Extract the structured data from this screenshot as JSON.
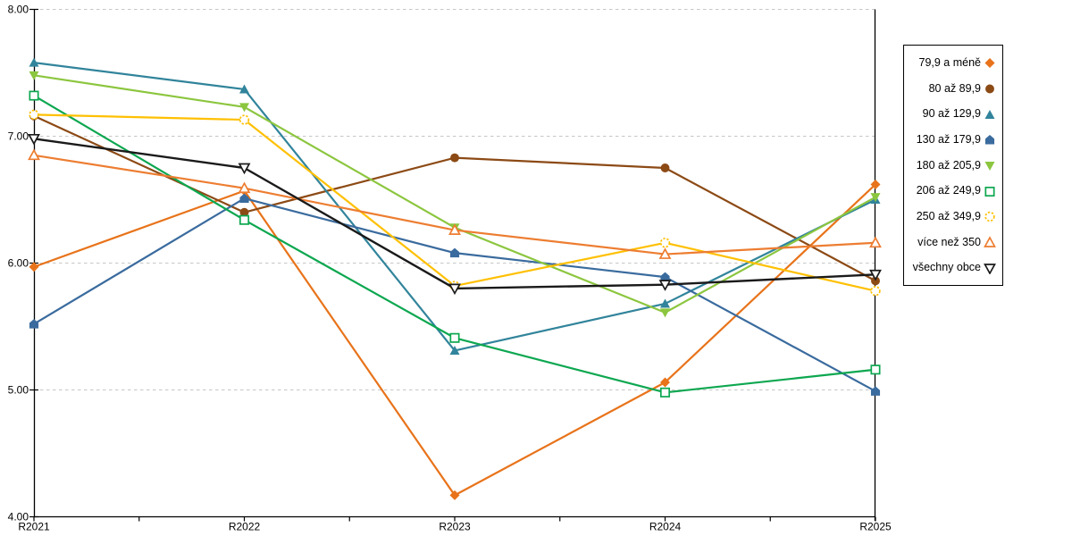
{
  "chart_data": {
    "type": "line",
    "title": "",
    "xlabel": "",
    "ylabel": "",
    "categories": [
      "R2021",
      "R2022",
      "R2023",
      "R2024",
      "R2025"
    ],
    "y_axis": {
      "min": 4,
      "max": 8,
      "tick_step": 1,
      "tick_labels": [
        "8.00",
        "7.00",
        "6.00",
        "5.00",
        "4.00"
      ]
    },
    "grid": "horizontal-dashed",
    "grid_color": "#c6c6c6",
    "axis_color": "#000000",
    "legend_position": "right",
    "series": [
      {
        "name": "79,9 a méně",
        "marker": "diamond",
        "fill": "solid",
        "color": "#e8731a",
        "values": [
          5.97,
          6.57,
          4.17,
          5.06,
          6.62
        ]
      },
      {
        "name": "80 až 89,9",
        "marker": "circle",
        "fill": "solid",
        "color": "#8c4a15",
        "values": [
          7.16,
          6.4,
          6.83,
          6.75,
          5.86
        ]
      },
      {
        "name": "90 až 129,9",
        "marker": "triangle-up",
        "fill": "solid",
        "color": "#31849b",
        "values": [
          7.58,
          7.37,
          5.31,
          5.68,
          6.5
        ]
      },
      {
        "name": "130 až 179,9",
        "marker": "pentagon",
        "fill": "solid",
        "color": "#3a6b9e",
        "values": [
          5.52,
          6.51,
          6.08,
          5.89,
          4.99
        ]
      },
      {
        "name": "180 až 205,9",
        "marker": "triangle-down",
        "fill": "solid",
        "color": "#8cc63f",
        "values": [
          7.48,
          7.23,
          6.28,
          5.61,
          6.52
        ]
      },
      {
        "name": "206 až 249,9",
        "marker": "square",
        "fill": "open",
        "color": "#0da750",
        "values": [
          7.32,
          6.34,
          5.41,
          4.98,
          5.16
        ]
      },
      {
        "name": "250 až 349,9",
        "marker": "circle-dashed",
        "fill": "open",
        "color": "#ffc002",
        "values": [
          7.17,
          7.13,
          5.82,
          6.16,
          5.78
        ]
      },
      {
        "name": "více než 350",
        "marker": "triangle-up",
        "fill": "open",
        "color": "#ed7d31",
        "values": [
          6.85,
          6.59,
          6.26,
          6.07,
          6.16
        ]
      },
      {
        "name": "všechny obce",
        "marker": "triangle-down",
        "fill": "open",
        "color": "#1a1a1a",
        "values": [
          6.98,
          6.75,
          5.8,
          5.83,
          5.91
        ]
      }
    ]
  }
}
